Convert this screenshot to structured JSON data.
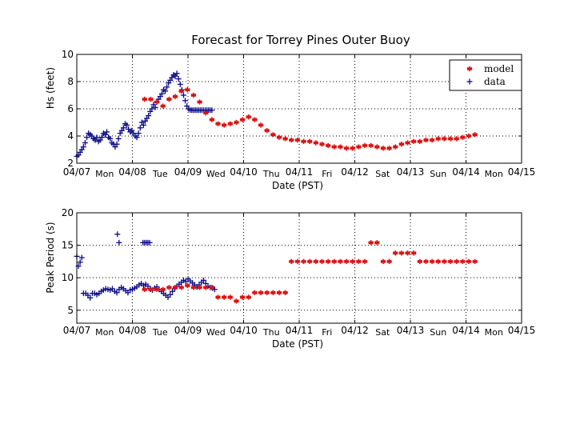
{
  "figure": {
    "title": "Forecast for Torrey Pines Outer Buoy"
  },
  "colors": {
    "model": "#dd1111",
    "data": "#0a0a8a",
    "grid": "#000000",
    "axis": "#000000"
  },
  "chart_data": [
    {
      "type": "scatter",
      "title": "Forecast for Torrey Pines Outer Buoy",
      "xlabel": "Date (PST)",
      "ylabel": "Hs (feet)",
      "xlim": [
        0,
        8
      ],
      "ylim": [
        2,
        10
      ],
      "grid": true,
      "legend_position": "top-right",
      "yticks": [
        "2",
        "4",
        "6",
        "8",
        "10"
      ],
      "xticks": [
        "04/07",
        "04/08",
        "04/09",
        "04/10",
        "04/11",
        "04/12",
        "04/13",
        "04/14",
        "04/15"
      ],
      "day_labels": [
        "Mon",
        "Tue",
        "Wed",
        "Thu",
        "Fri",
        "Sat",
        "Sun",
        "Mon"
      ],
      "series": [
        {
          "name": "data",
          "marker": "+",
          "x": [
            0.0,
            0.03,
            0.06,
            0.09,
            0.12,
            0.15,
            0.18,
            0.21,
            0.24,
            0.27,
            0.3,
            0.33,
            0.36,
            0.39,
            0.42,
            0.45,
            0.48,
            0.51,
            0.54,
            0.57,
            0.6,
            0.63,
            0.66,
            0.69,
            0.72,
            0.75,
            0.78,
            0.81,
            0.84,
            0.87,
            0.9,
            0.93,
            0.96,
            0.99,
            1.02,
            1.05,
            1.08,
            1.11,
            1.14,
            1.17,
            1.2,
            1.23,
            1.26,
            1.29,
            1.32,
            1.35,
            1.38,
            1.41,
            1.44,
            1.47,
            1.5,
            1.53,
            1.56,
            1.59,
            1.62,
            1.65,
            1.68,
            1.71,
            1.74,
            1.77,
            1.8,
            1.83,
            1.86,
            1.89,
            1.92,
            1.95,
            1.98,
            2.01,
            2.04,
            2.07,
            2.1,
            2.13,
            2.16,
            2.19,
            2.22,
            2.25,
            2.28,
            2.31,
            2.34,
            2.37,
            2.4,
            2.43
          ],
          "y": [
            2.5,
            2.6,
            2.8,
            3.0,
            3.2,
            3.5,
            3.9,
            4.2,
            4.1,
            4.0,
            3.8,
            3.7,
            3.9,
            3.6,
            3.7,
            3.9,
            4.2,
            4.1,
            4.3,
            3.9,
            3.8,
            3.5,
            3.4,
            3.2,
            3.4,
            3.8,
            4.2,
            4.4,
            4.6,
            4.9,
            4.8,
            4.5,
            4.3,
            4.4,
            4.2,
            4.0,
            3.9,
            4.2,
            4.6,
            5.0,
            4.8,
            5.1,
            5.3,
            5.5,
            5.8,
            6.0,
            6.3,
            6.1,
            6.5,
            6.7,
            6.9,
            7.1,
            7.4,
            7.3,
            7.6,
            7.9,
            8.1,
            8.3,
            8.5,
            8.4,
            8.6,
            8.2,
            7.8,
            7.4,
            7.0,
            6.6,
            6.2,
            6.0,
            5.9,
            5.9,
            5.9,
            5.9,
            5.9,
            5.9,
            5.9,
            5.9,
            5.9,
            5.9,
            5.9,
            5.9,
            5.9,
            5.9
          ]
        },
        {
          "name": "model",
          "marker": "*",
          "x": [
            1.22,
            1.33,
            1.44,
            1.55,
            1.66,
            1.77,
            1.88,
            1.99,
            2.1,
            2.21,
            2.32,
            2.43,
            2.54,
            2.65,
            2.76,
            2.87,
            2.98,
            3.09,
            3.2,
            3.31,
            3.42,
            3.53,
            3.64,
            3.75,
            3.86,
            3.97,
            4.08,
            4.19,
            4.3,
            4.41,
            4.52,
            4.63,
            4.74,
            4.85,
            4.96,
            5.07,
            5.18,
            5.29,
            5.4,
            5.51,
            5.62,
            5.73,
            5.84,
            5.95,
            6.06,
            6.17,
            6.28,
            6.39,
            6.5,
            6.61,
            6.72,
            6.83,
            6.94,
            7.05,
            7.16
          ],
          "y": [
            6.7,
            6.7,
            6.5,
            6.2,
            6.7,
            6.9,
            7.3,
            7.4,
            7.0,
            6.5,
            5.7,
            5.2,
            4.9,
            4.8,
            4.9,
            5.0,
            5.2,
            5.4,
            5.2,
            4.8,
            4.4,
            4.1,
            3.9,
            3.8,
            3.7,
            3.7,
            3.6,
            3.6,
            3.5,
            3.4,
            3.3,
            3.2,
            3.2,
            3.1,
            3.1,
            3.2,
            3.3,
            3.3,
            3.2,
            3.1,
            3.1,
            3.2,
            3.4,
            3.5,
            3.6,
            3.6,
            3.7,
            3.7,
            3.8,
            3.8,
            3.8,
            3.8,
            3.9,
            4.0,
            4.1
          ]
        }
      ]
    },
    {
      "type": "scatter",
      "title": "",
      "xlabel": "Date (PST)",
      "ylabel": "Peak Period (s)",
      "xlim": [
        0,
        8
      ],
      "ylim": [
        3,
        20
      ],
      "grid": true,
      "yticks": [
        "5",
        "10",
        "15",
        "20"
      ],
      "xticks": [
        "04/07",
        "04/08",
        "04/09",
        "04/10",
        "04/11",
        "04/12",
        "04/13",
        "04/14",
        "04/15"
      ],
      "day_labels": [
        "Mon",
        "Tue",
        "Wed",
        "Thu",
        "Fri",
        "Sat",
        "Sun",
        "Mon"
      ],
      "series": [
        {
          "name": "data",
          "marker": "+",
          "x": [
            0.0,
            0.03,
            0.06,
            0.09,
            0.12,
            0.16,
            0.2,
            0.24,
            0.28,
            0.32,
            0.36,
            0.4,
            0.44,
            0.48,
            0.52,
            0.56,
            0.6,
            0.64,
            0.68,
            0.72,
            0.76,
            0.8,
            0.84,
            0.88,
            0.92,
            0.96,
            1.0,
            1.04,
            1.08,
            1.12,
            1.16,
            1.2,
            1.24,
            1.28,
            1.32,
            1.36,
            1.4,
            1.44,
            1.48,
            1.52,
            1.56,
            1.6,
            1.64,
            1.68,
            1.72,
            1.76,
            1.8,
            1.84,
            1.88,
            1.92,
            1.96,
            2.0,
            2.04,
            2.08,
            2.12,
            2.16,
            2.2,
            2.24,
            2.28,
            2.32,
            2.36,
            2.4,
            2.44,
            2.48,
            0.73,
            0.76,
            1.19,
            1.22,
            1.25,
            1.28,
            1.31
          ],
          "y": [
            13.3,
            11.8,
            12.4,
            13.1,
            7.6,
            7.6,
            7.3,
            6.9,
            7.6,
            7.6,
            7.4,
            7.6,
            7.9,
            8.1,
            8.3,
            8.2,
            8.1,
            8.3,
            7.9,
            7.7,
            8.2,
            8.5,
            8.3,
            8.0,
            7.7,
            8.1,
            8.2,
            8.4,
            8.6,
            8.9,
            9.1,
            8.8,
            9.0,
            8.7,
            8.3,
            8.1,
            8.4,
            8.6,
            8.2,
            7.9,
            7.6,
            7.3,
            7.0,
            7.4,
            7.9,
            8.3,
            8.7,
            9.0,
            9.3,
            9.6,
            9.4,
            9.8,
            9.5,
            9.2,
            8.9,
            8.6,
            8.9,
            9.3,
            9.6,
            9.1,
            8.7,
            8.5,
            8.4,
            8.2,
            16.7,
            15.4,
            15.4,
            15.4,
            15.4,
            15.4,
            15.4
          ]
        },
        {
          "name": "model",
          "marker": "*",
          "x": [
            1.22,
            1.33,
            1.44,
            1.55,
            1.66,
            1.77,
            1.88,
            1.99,
            2.1,
            2.21,
            2.32,
            2.43,
            2.54,
            2.65,
            2.76,
            2.87,
            2.98,
            3.09,
            3.2,
            3.31,
            3.42,
            3.53,
            3.64,
            3.75,
            3.86,
            3.97,
            4.08,
            4.19,
            4.3,
            4.41,
            4.52,
            4.63,
            4.74,
            4.85,
            4.96,
            5.07,
            5.18,
            5.29,
            5.4,
            5.51,
            5.62,
            5.73,
            5.84,
            5.95,
            6.06,
            6.17,
            6.28,
            6.39,
            6.5,
            6.61,
            6.72,
            6.83,
            6.94,
            7.05,
            7.16
          ],
          "y": [
            8.2,
            8.2,
            8.2,
            8.2,
            8.5,
            8.5,
            8.5,
            8.8,
            8.5,
            8.5,
            8.5,
            8.5,
            7.0,
            7.0,
            7.0,
            6.4,
            7.0,
            7.0,
            7.7,
            7.7,
            7.7,
            7.7,
            7.7,
            7.7,
            12.5,
            12.5,
            12.5,
            12.5,
            12.5,
            12.5,
            12.5,
            12.5,
            12.5,
            12.5,
            12.5,
            12.5,
            12.5,
            15.4,
            15.4,
            12.5,
            12.5,
            13.8,
            13.8,
            13.8,
            13.8,
            12.5,
            12.5,
            12.5,
            12.5,
            12.5,
            12.5,
            12.5,
            12.5,
            12.5,
            12.5
          ]
        }
      ]
    }
  ]
}
